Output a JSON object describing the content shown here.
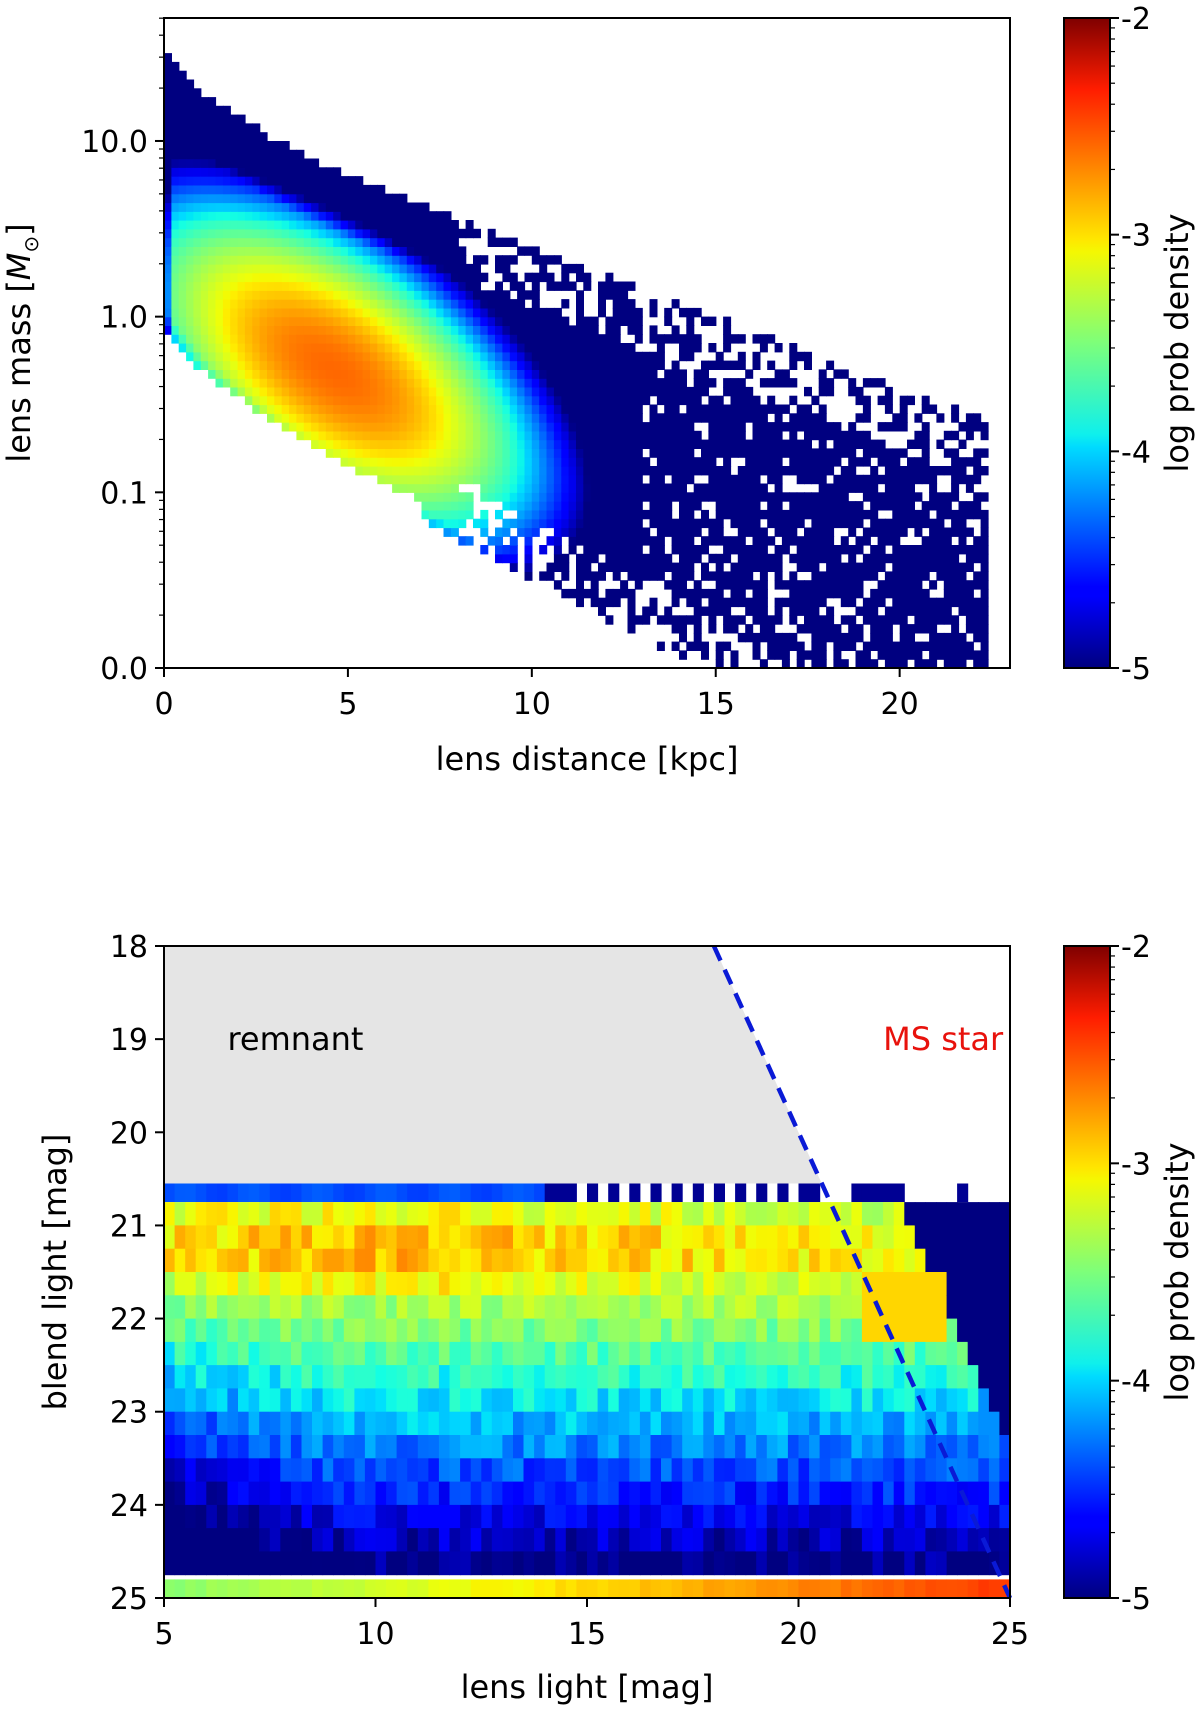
{
  "chart_data": [
    {
      "type": "heatmap",
      "title": "",
      "xlabel": "lens distance [kpc]",
      "ylabel": "lens mass [M_sun]",
      "ylabel_parts": {
        "prefix": "lens mass [",
        "symbol": "M",
        "sub": "⊙",
        "suffix": "]"
      },
      "xlim": [
        0,
        23
      ],
      "xticks": [
        0,
        5,
        10,
        15,
        20
      ],
      "xtick_labels": [
        "0",
        "5",
        "10",
        "15",
        "20"
      ],
      "ylim_log10": [
        -2,
        1.7
      ],
      "yticks_log10": [
        -2,
        -1,
        0,
        1
      ],
      "ytick_labels": [
        "0.0",
        "0.1",
        "1.0",
        "10.0"
      ],
      "colorbar": {
        "label": "log prob density",
        "range": [
          -5,
          -2
        ],
        "ticks": [
          -5,
          -4,
          -3,
          -2
        ],
        "tick_labels": [
          "-5",
          "-4",
          "-3",
          "-2"
        ]
      },
      "features": {
        "ridge_log10_mass": {
          "x": [
            0,
            1,
            2,
            3,
            4,
            5,
            6,
            7
          ],
          "y": [
            0.6,
            0.35,
            0.2,
            0.05,
            -0.08,
            -0.2,
            -0.3,
            -0.4
          ]
        },
        "peak": {
          "x": 4.6,
          "log10_mass": -0.3,
          "log_density": -2.6
        },
        "tail": {
          "x_max": 22.3,
          "log10_mass_at_x_max": -1.8
        }
      }
    },
    {
      "type": "heatmap",
      "title": "",
      "xlabel": "lens light [mag]",
      "ylabel": "blend light [mag]",
      "xlim": [
        5,
        25
      ],
      "xticks": [
        5,
        10,
        15,
        20,
        25
      ],
      "xtick_labels": [
        "5",
        "10",
        "15",
        "20",
        "25"
      ],
      "ylim": [
        25,
        18
      ],
      "yticks": [
        18,
        19,
        20,
        21,
        22,
        23,
        24,
        25
      ],
      "ytick_labels": [
        "18",
        "19",
        "20",
        "21",
        "22",
        "23",
        "24",
        "25"
      ],
      "colorbar": {
        "label": "log prob density",
        "range": [
          -5,
          -2
        ],
        "ticks": [
          -5,
          -4,
          -3,
          -2
        ],
        "tick_labels": [
          "-5",
          "-4",
          "-3",
          "-2"
        ]
      },
      "annotations": [
        {
          "text": "remnant",
          "color": "#000000",
          "x": 6.5,
          "y": 19.0
        },
        {
          "text": "MS star",
          "color": "#e8120c",
          "x": 22,
          "y": 19.0
        }
      ],
      "divider_line": {
        "x": [
          18,
          25
        ],
        "y": [
          18,
          25
        ],
        "color": "#0a1ad6",
        "style": "dashed"
      },
      "remnant_region": {
        "color": "#e5e5e5",
        "y_from": 18,
        "y_to": 20.55
      },
      "features": {
        "bright_band_y": [
          20.8,
          21.7
        ],
        "bottom_row_y": 24.85,
        "sparse_top_row_y": 20.6
      }
    }
  ],
  "colors": {
    "remnant_fill": "#e5e5e5",
    "ms_text": "#e8120c",
    "divider": "#0a1ad6"
  }
}
